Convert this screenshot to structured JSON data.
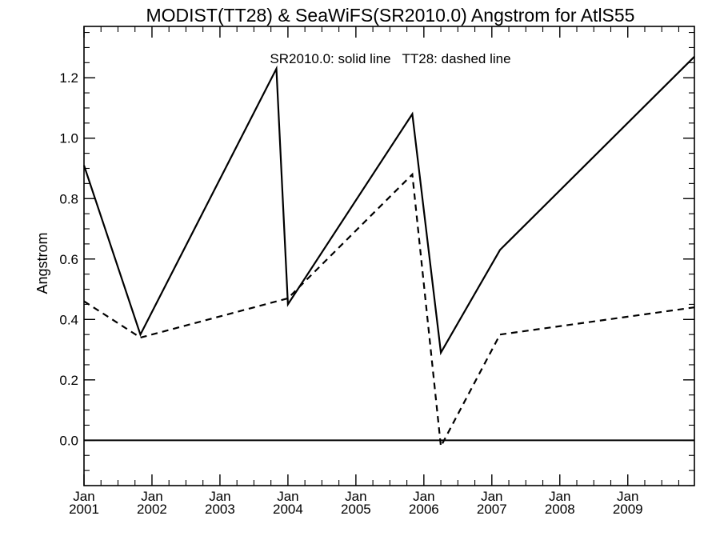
{
  "chart_data": {
    "type": "line",
    "title": "MODIST(TT28) & SeaWiFS(SR2010.0)  Angstrom for AtlS55",
    "xlabel": "",
    "ylabel": "Angstrom",
    "legend_text": "SR2010.0: solid line   TT28: dashed line",
    "xlim": [
      2001.0,
      2009.98
    ],
    "ylim": [
      -0.15,
      1.37
    ],
    "yticks": [
      0.0,
      0.2,
      0.4,
      0.6,
      0.8,
      1.0,
      1.2
    ],
    "ytick_labels": [
      "0.0",
      "0.2",
      "0.4",
      "0.6",
      "0.8",
      "1.0",
      "1.2"
    ],
    "xticks": [
      2001,
      2002,
      2003,
      2004,
      2005,
      2006,
      2007,
      2008,
      2009
    ],
    "xtick_month_labels": [
      "Jan",
      "Jan",
      "Jan",
      "Jan",
      "Jan",
      "Jan",
      "Jan",
      "Jan",
      "Jan"
    ],
    "xtick_year_labels": [
      "2001",
      "2002",
      "2003",
      "2004",
      "2005",
      "2006",
      "2007",
      "2008",
      "2009"
    ],
    "grid": false,
    "reference_line_y": 0.0,
    "series": [
      {
        "name": "SR2010.0",
        "style": "solid",
        "x": [
          2001.0,
          2001.83,
          2003.83,
          2004.0,
          2005.83,
          2006.25,
          2007.12,
          2009.98
        ],
        "y": [
          0.91,
          0.35,
          1.23,
          0.45,
          1.08,
          0.29,
          0.63,
          1.27
        ]
      },
      {
        "name": "TT28",
        "style": "dashed",
        "x": [
          2001.0,
          2001.83,
          2004.0,
          2005.83,
          2006.25,
          2007.12,
          2009.98
        ],
        "y": [
          0.46,
          0.34,
          0.47,
          0.88,
          -0.02,
          0.35,
          0.44
        ]
      }
    ]
  }
}
